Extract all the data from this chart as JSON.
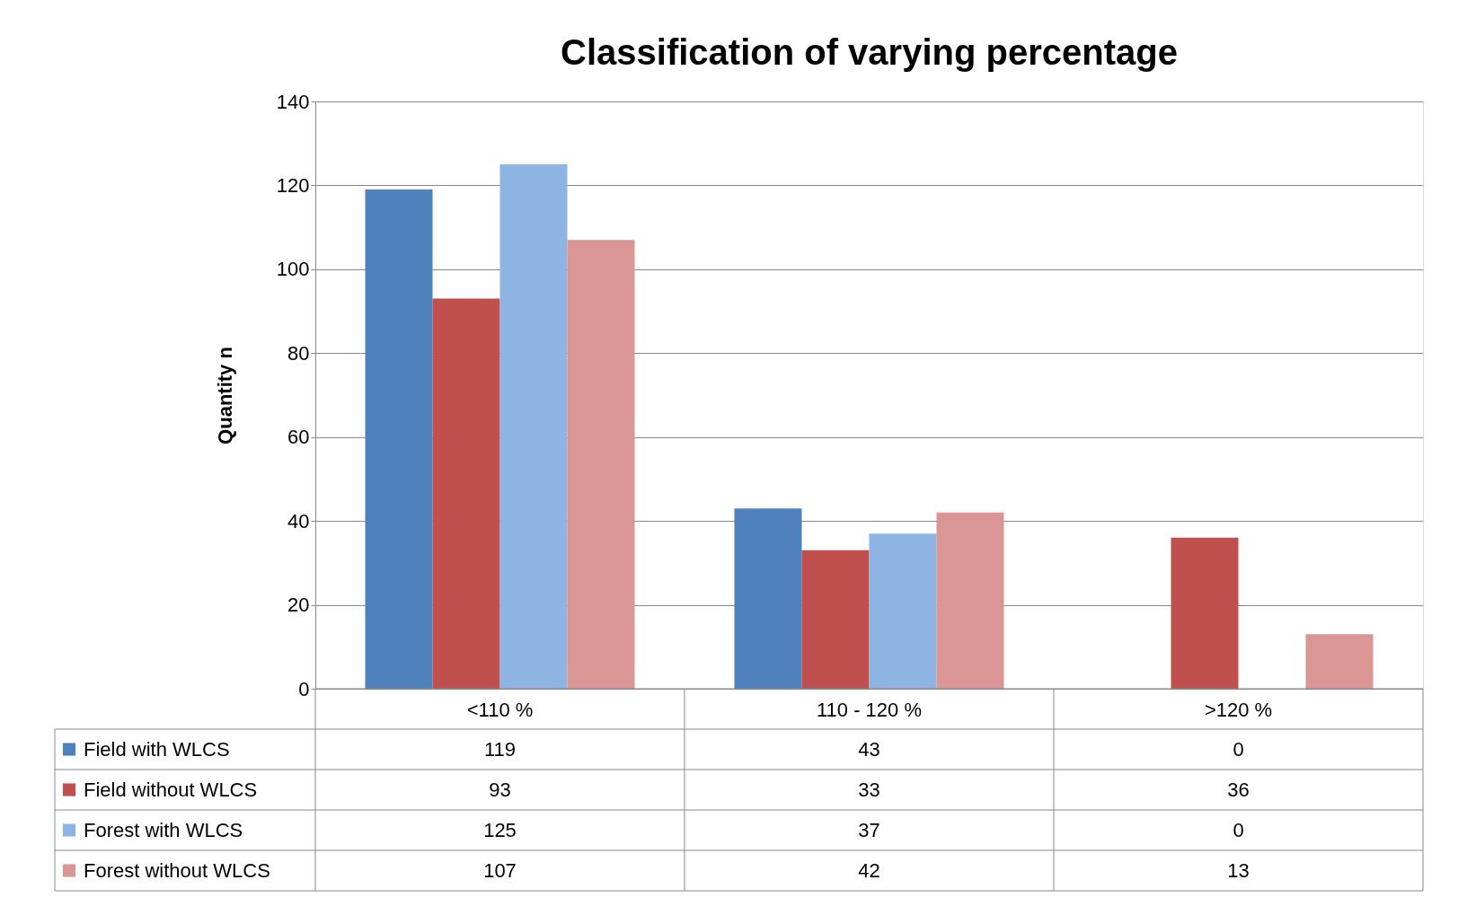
{
  "chart_data": {
    "type": "bar",
    "title": "Classification of varying percentage",
    "ylabel": "Quantity n",
    "categories": [
      "<110 %",
      "110 - 120 %",
      ">120 %"
    ],
    "series": [
      {
        "name": "Field with WLCS",
        "color": "#4f81bd",
        "values": [
          119,
          43,
          0
        ]
      },
      {
        "name": "Field without WLCS",
        "color": "#c0504d",
        "values": [
          93,
          33,
          36
        ]
      },
      {
        "name": "Forest with WLCS",
        "color": "#8eb4e3",
        "values": [
          125,
          37,
          0
        ]
      },
      {
        "name": "Forest without WLCS",
        "color": "#d99694",
        "values": [
          107,
          42,
          13
        ]
      }
    ],
    "ylim": [
      0,
      140
    ],
    "yticks": [
      0,
      20,
      40,
      60,
      80,
      100,
      120,
      140
    ],
    "grid": "y",
    "legend": "bottom",
    "data_labels": true
  }
}
